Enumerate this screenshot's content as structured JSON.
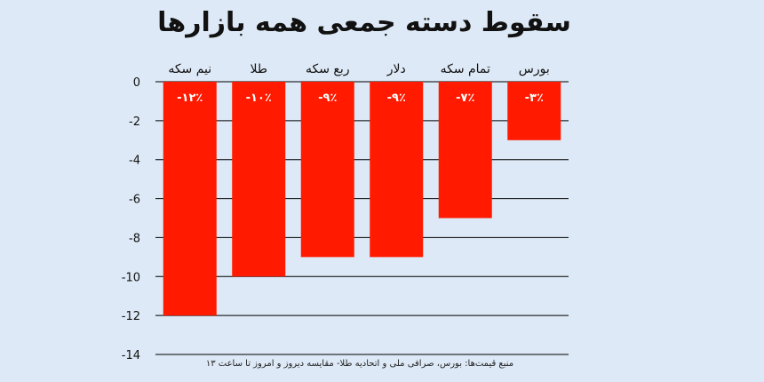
{
  "chart_data": {
    "type": "bar",
    "title": "سقوط دسته جمعی همه بازارها",
    "source": "منبع قیمت‌ها: بورس، صرافی ملی و اتحادیه طلا- مقایسه دیروز و امروز تا ساعت ۱۳",
    "categories": [
      "نیم سکه",
      "طلا",
      "ربع سکه",
      "دلار",
      "تمام سکه",
      "بورس"
    ],
    "values": [
      -12,
      -10,
      -9,
      -9,
      -7,
      -3
    ],
    "data_labels": [
      "-۱۲٪",
      "-۱۰٪",
      "-۹٪",
      "-۹٪",
      "-۷٪",
      "-۳٪"
    ],
    "y_ticks": [
      0,
      -2,
      -4,
      -6,
      -8,
      -10,
      -12,
      -14
    ],
    "y_tick_labels": [
      "0",
      "-2",
      "-4",
      "-6",
      "-8",
      "-10",
      "-12",
      "-14"
    ],
    "ylim": [
      -14,
      0
    ],
    "grid": true,
    "bar_color": "#ff1a00",
    "grid_color": "#000000"
  }
}
